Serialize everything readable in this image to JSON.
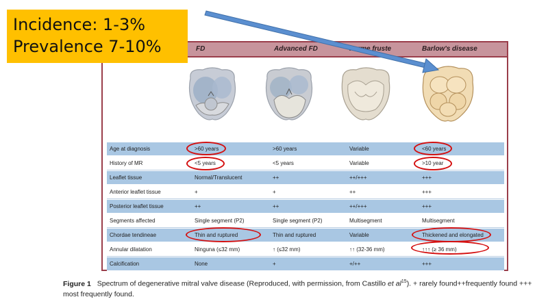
{
  "annotation": {
    "line1": "Incidence: 1-3%",
    "line2": "Prevalence 7-10%"
  },
  "header": {
    "col_fd": "FD",
    "col_advanced_fd": "Advanced FD",
    "col_forme_fruste": "Forme fruste",
    "col_barlows": "Barlow's disease"
  },
  "rows": [
    {
      "label": "Age at diagnosis",
      "fd": ">60 years",
      "advanced_fd": ">60 years",
      "forme_fruste": "Variable",
      "barlows": "<60 years"
    },
    {
      "label": "History of MR",
      "fd": "<5 years",
      "advanced_fd": "<5 years",
      "forme_fruste": "Variable",
      "barlows": ">10 year"
    },
    {
      "label": "Leaflet tissue",
      "fd": "Normal/Translucent",
      "advanced_fd": "++",
      "forme_fruste": "++/+++",
      "barlows": "+++"
    },
    {
      "label": "Anterior leaflet tissue",
      "fd": "+",
      "advanced_fd": "+",
      "forme_fruste": "++",
      "barlows": "+++"
    },
    {
      "label": "Posterior leaflet tissue",
      "fd": "++",
      "advanced_fd": "++",
      "forme_fruste": "++/+++",
      "barlows": "+++"
    },
    {
      "label": "Segments affected",
      "fd": "Single segment (P2)",
      "advanced_fd": "Single segment (P2)",
      "forme_fruste": "Multisegment",
      "barlows": "Multisegment"
    },
    {
      "label": "Chordae tendineae",
      "fd": "Thin and ruptured",
      "advanced_fd": "Thin and ruptured",
      "forme_fruste": "Variable",
      "barlows": "Thickened and elongated"
    },
    {
      "label": "Annular dilatation",
      "fd": "Ninguna (≤32 mm)",
      "advanced_fd": "↑ (≤32 mm)",
      "forme_fruste": "↑↑ (32-36 mm)",
      "barlows": "↑↑↑ (≥ 36 mm)"
    },
    {
      "label": "Calcification",
      "fd": "None",
      "advanced_fd": "+",
      "forme_fruste": "+/++",
      "barlows": "+++"
    }
  ],
  "caption": {
    "label": "Figure 1",
    "text_before_italic": "Spectrum of degenerative mitral valve disease (Reproduced, with permission, from Castillo ",
    "italic": "et al",
    "ref": "15",
    "text_after": ").  + rarely found++frequently found +++ most frequently found."
  },
  "colors": {
    "frame": "#9a3d4a",
    "header_fill": "#c7949c",
    "row_blue": "#a9c7e3",
    "highlight_oval": "#d41010",
    "note_fill": "#ffc000",
    "arrow": "#4f81bd"
  }
}
